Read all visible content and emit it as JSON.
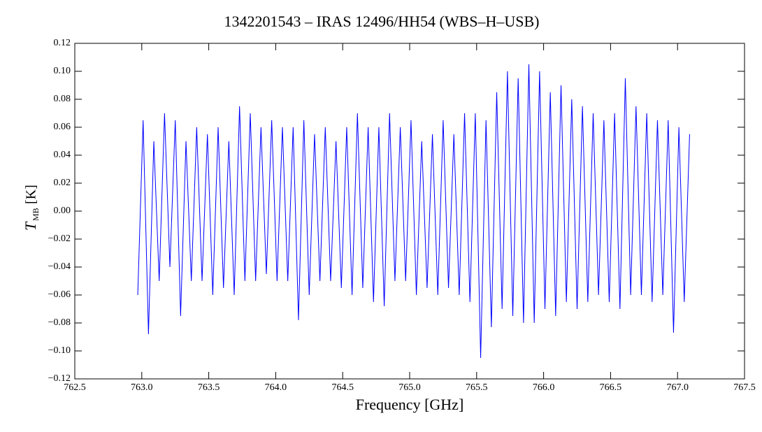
{
  "chart_data": {
    "type": "line",
    "title": "1342201543 – IRAS 12496/HH54 (WBS–H–USB)",
    "xlabel": "Frequency [GHz]",
    "ylabel": "T",
    "ylabel_subscript": "MB",
    "ylabel_unit": "[K]",
    "xlim": [
      762.5,
      767.5
    ],
    "ylim": [
      -0.12,
      0.12
    ],
    "xticks": [
      762.5,
      {
        "value": 763,
        "label": "763.0"
      },
      763.5,
      {
        "value": 764,
        "label": "764.0"
      },
      764.5,
      {
        "value": 765,
        "label": "765.0"
      },
      765.5,
      {
        "value": 766,
        "label": "766.0"
      },
      766.5,
      {
        "value": 767,
        "label": "767.0"
      },
      767.5
    ],
    "yticks": [
      {
        "value": -0.12,
        "label": "−0.12"
      },
      {
        "value": -0.1,
        "label": "−0.10"
      },
      {
        "value": -0.08,
        "label": "−0.08"
      },
      {
        "value": -0.06,
        "label": "−0.06"
      },
      {
        "value": -0.04,
        "label": "−0.04"
      },
      {
        "value": -0.02,
        "label": "−0.02"
      },
      {
        "value": 0,
        "label": "0.00"
      },
      0.02,
      0.04,
      0.06,
      0.08,
      {
        "value": 0.1,
        "label": "0.10"
      },
      0.12
    ],
    "series": [
      {
        "color": "#0000ff",
        "x": [
          762.97,
          763.01,
          763.05,
          763.09,
          763.13,
          763.17,
          763.21,
          763.25,
          763.29,
          763.33,
          763.37,
          763.41,
          763.45,
          763.49,
          763.53,
          763.57,
          763.61,
          763.65,
          763.69,
          763.73,
          763.77,
          763.81,
          763.85,
          763.89,
          763.93,
          763.97,
          764.01,
          764.05,
          764.09,
          764.13,
          764.17,
          764.21,
          764.25,
          764.29,
          764.33,
          764.37,
          764.41,
          764.45,
          764.49,
          764.53,
          764.57,
          764.61,
          764.65,
          764.69,
          764.73,
          764.77,
          764.81,
          764.85,
          764.89,
          764.93,
          764.97,
          765.01,
          765.05,
          765.09,
          765.13,
          765.17,
          765.21,
          765.25,
          765.29,
          765.33,
          765.37,
          765.41,
          765.45,
          765.49,
          765.53,
          765.57,
          765.61,
          765.65,
          765.69,
          765.73,
          765.77,
          765.81,
          765.85,
          765.89,
          765.93,
          765.97,
          766.01,
          766.05,
          766.09,
          766.13,
          766.17,
          766.21,
          766.25,
          766.29,
          766.33,
          766.37,
          766.41,
          766.45,
          766.49,
          766.53,
          766.57,
          766.61,
          766.65,
          766.69,
          766.73,
          766.77,
          766.81,
          766.85,
          766.89,
          766.93,
          766.97,
          767.01,
          767.05,
          767.09
        ],
        "values": [
          -0.06,
          0.065,
          -0.088,
          0.05,
          -0.05,
          0.07,
          -0.04,
          0.065,
          -0.075,
          0.05,
          -0.05,
          0.06,
          -0.05,
          0.055,
          -0.06,
          0.06,
          -0.055,
          0.05,
          -0.06,
          0.075,
          -0.05,
          0.07,
          -0.05,
          0.06,
          -0.045,
          0.065,
          -0.05,
          0.06,
          -0.05,
          0.06,
          -0.078,
          0.065,
          -0.06,
          0.055,
          -0.05,
          0.06,
          -0.05,
          0.05,
          -0.055,
          0.06,
          -0.06,
          0.07,
          -0.055,
          0.06,
          -0.065,
          0.06,
          -0.068,
          0.07,
          -0.05,
          0.06,
          -0.05,
          0.065,
          -0.06,
          0.05,
          -0.055,
          0.055,
          -0.06,
          0.065,
          -0.055,
          0.055,
          -0.06,
          0.07,
          -0.065,
          0.07,
          -0.105,
          0.065,
          -0.083,
          0.085,
          -0.07,
          0.1,
          -0.075,
          0.095,
          -0.08,
          0.105,
          -0.08,
          0.1,
          -0.07,
          0.085,
          -0.075,
          0.09,
          -0.065,
          0.08,
          -0.07,
          0.075,
          -0.065,
          0.07,
          -0.06,
          0.065,
          -0.065,
          0.07,
          -0.07,
          0.095,
          -0.06,
          0.075,
          -0.06,
          0.07,
          -0.065,
          0.065,
          -0.06,
          0.065,
          -0.087,
          0.06,
          -0.065,
          0.055
        ]
      }
    ]
  }
}
